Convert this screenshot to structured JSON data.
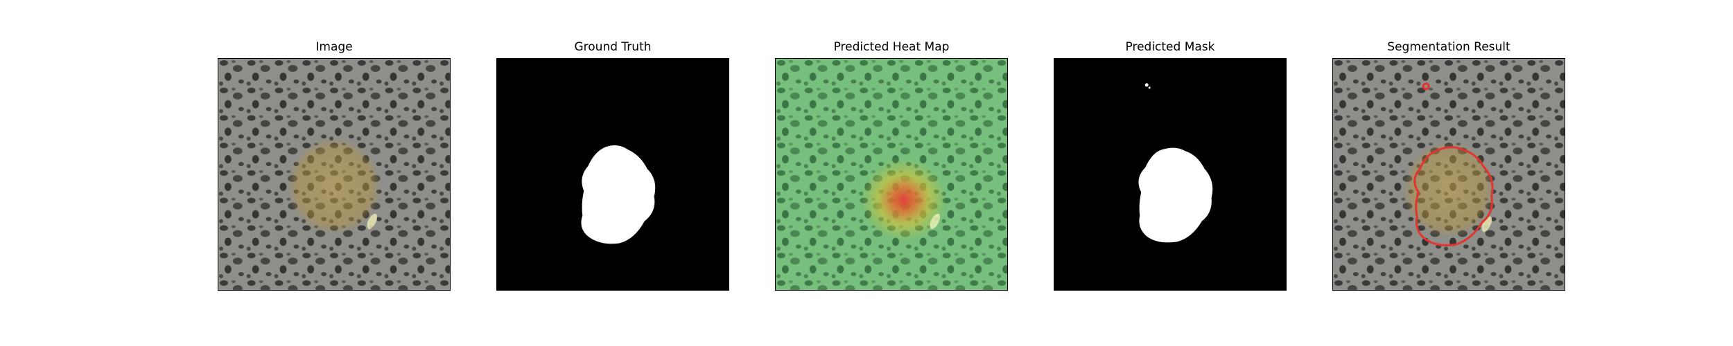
{
  "panels": [
    {
      "title": "Image",
      "kind": "image"
    },
    {
      "title": "Ground Truth",
      "kind": "ground-truth"
    },
    {
      "title": "Predicted Heat Map",
      "kind": "heatmap"
    },
    {
      "title": "Predicted Mask",
      "kind": "mask"
    },
    {
      "title": "Segmentation Result",
      "kind": "segmentation"
    }
  ],
  "colors": {
    "background_stone": "#8c8c88",
    "speckle": "#3a3a38",
    "lesion_tint": "#b79a4a",
    "heat_green": "#6fbf73",
    "heat_red": "#e53935",
    "mask_white": "#ffffff",
    "mask_black": "#000000",
    "contour_red": "#e3342f"
  }
}
